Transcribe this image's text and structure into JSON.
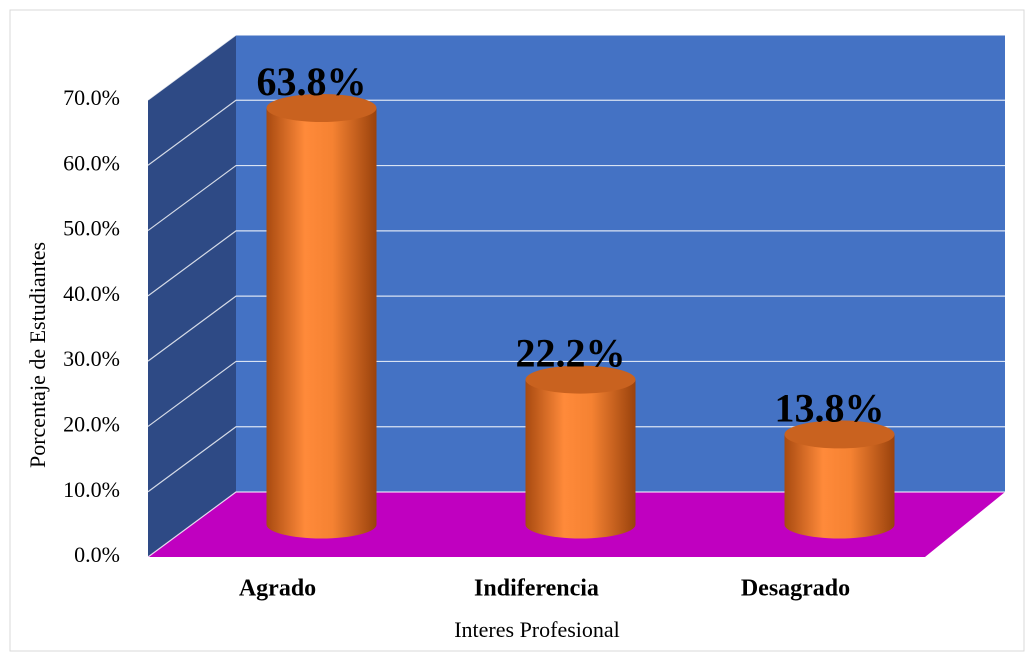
{
  "chart_data": {
    "type": "bar3d",
    "categories": [
      "Agrado",
      "Indiferencia",
      "Desagrado"
    ],
    "values": [
      63.8,
      22.2,
      13.8
    ],
    "value_labels": [
      "63.8%",
      "22.2%",
      "13.8%"
    ],
    "color": "#f58232",
    "ylabel": "Porcentaje de Estudiantes",
    "xlabel": "Interes Profesional",
    "ylim": [
      0,
      70
    ],
    "yticks": [
      {
        "value": 0,
        "label": "0.0%"
      },
      {
        "value": 10,
        "label": "10.0%"
      },
      {
        "value": 20,
        "label": "20.0%"
      },
      {
        "value": 30,
        "label": "30.0%"
      },
      {
        "value": 40,
        "label": "40.0%"
      },
      {
        "value": 50,
        "label": "50.0%"
      },
      {
        "value": 60,
        "label": "60.0%"
      },
      {
        "value": 70,
        "label": "70.0%"
      }
    ],
    "grid": true
  }
}
